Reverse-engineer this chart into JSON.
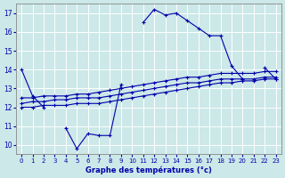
{
  "xlabel": "Graphe des températures (°c)",
  "background_color": "#cce8e8",
  "grid_color": "#ffffff",
  "line_color": "#0000aa",
  "hours": [
    0,
    1,
    2,
    3,
    4,
    5,
    6,
    7,
    8,
    9,
    10,
    11,
    12,
    13,
    14,
    15,
    16,
    17,
    18,
    19,
    20,
    21,
    22,
    23
  ],
  "temp_actual": [
    14.0,
    12.6,
    12.0,
    null,
    10.9,
    9.8,
    10.6,
    10.5,
    10.5,
    13.2,
    null,
    16.5,
    17.2,
    16.9,
    17.0,
    16.6,
    16.2,
    15.8,
    15.8,
    14.2,
    13.5,
    null,
    14.1,
    13.5
  ],
  "temp_line1": [
    12.0,
    12.0,
    12.1,
    12.1,
    12.1,
    12.2,
    12.2,
    12.2,
    12.3,
    12.4,
    12.5,
    12.6,
    12.7,
    12.8,
    12.9,
    13.0,
    13.1,
    13.2,
    13.3,
    13.3,
    13.4,
    13.4,
    13.5,
    13.5
  ],
  "temp_line2": [
    12.2,
    12.3,
    12.3,
    12.4,
    12.4,
    12.5,
    12.5,
    12.5,
    12.6,
    12.7,
    12.8,
    12.9,
    13.0,
    13.1,
    13.2,
    13.3,
    13.3,
    13.4,
    13.5,
    13.5,
    13.5,
    13.5,
    13.6,
    13.6
  ],
  "temp_line3": [
    12.5,
    12.5,
    12.6,
    12.6,
    12.6,
    12.7,
    12.7,
    12.8,
    12.9,
    13.0,
    13.1,
    13.2,
    13.3,
    13.4,
    13.5,
    13.6,
    13.6,
    13.7,
    13.8,
    13.8,
    13.8,
    13.8,
    13.9,
    13.9
  ],
  "ylim": [
    9.5,
    17.5
  ],
  "yticks": [
    10,
    11,
    12,
    13,
    14,
    15,
    16,
    17
  ],
  "xlim": [
    -0.5,
    23.5
  ]
}
